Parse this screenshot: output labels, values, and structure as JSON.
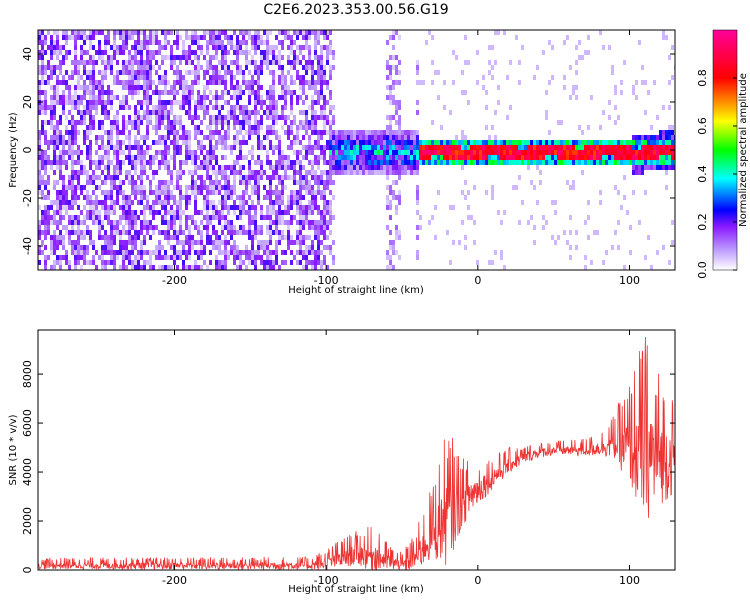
{
  "title": "C2E6.2023.353.00.56.G19",
  "colors": {
    "snr_line": "#ee3333",
    "axis": "#000000",
    "background": "#ffffff",
    "colormap": [
      "#ffffff",
      "#8a1aff",
      "#0000ff",
      "#00ffff",
      "#00ff00",
      "#ffff00",
      "#ff0000",
      "#ff00aa"
    ]
  },
  "chart_data": [
    {
      "type": "heatmap",
      "title": "",
      "xlabel": "Height of straight line (km)",
      "ylabel": "Frequency (Hz)",
      "xlim": [
        -290,
        130
      ],
      "ylim": [
        -50,
        50
      ],
      "x_ticks": [
        -200,
        -100,
        0,
        100
      ],
      "y_ticks": [
        -40,
        -20,
        0,
        20,
        40
      ],
      "colorbar": {
        "label": "Normalized spectral amplitude",
        "range": [
          0,
          1
        ],
        "ticks": [
          0.0,
          0.2,
          0.4,
          0.6,
          0.8
        ]
      },
      "regions": [
        {
          "x_range": [
            -290,
            -100
          ],
          "description_level": 0.25,
          "spread_hz": 50
        },
        {
          "x_range": [
            -100,
            -40
          ],
          "description_level": 0.4,
          "spread_hz": 10
        },
        {
          "x_range": [
            -40,
            130
          ],
          "center_hz": 0,
          "peak_level": 0.9,
          "spread_hz": 3
        }
      ]
    },
    {
      "type": "line",
      "title": "",
      "xlabel": "Height of straight line (km)",
      "ylabel": "SNR (10 * v/v)",
      "xlim": [
        -290,
        130
      ],
      "ylim": [
        0,
        9800
      ],
      "x_ticks": [
        -200,
        -100,
        0,
        100
      ],
      "y_ticks": [
        0,
        2000,
        4000,
        6000,
        8000
      ],
      "grid": false,
      "envelope": {
        "x": [
          -290,
          -110,
          -100,
          -90,
          -80,
          -70,
          -60,
          -50,
          -40,
          -30,
          -20,
          -10,
          0,
          10,
          20,
          30,
          40,
          50,
          60,
          70,
          80,
          90,
          100,
          110,
          120,
          130
        ],
        "mean": [
          200,
          200,
          300,
          500,
          700,
          600,
          400,
          150,
          600,
          1500,
          2200,
          2800,
          3300,
          3800,
          4300,
          4600,
          4800,
          4900,
          4900,
          4900,
          5000,
          5200,
          5000,
          4700,
          4600,
          4500
        ],
        "max": [
          500,
          550,
          900,
          1300,
          1600,
          1800,
          1200,
          700,
          1800,
          3500,
          5900,
          4600,
          4500,
          4700,
          5000,
          5100,
          5200,
          5300,
          5300,
          5400,
          5600,
          6400,
          7800,
          9800,
          8200,
          7000
        ]
      }
    }
  ]
}
